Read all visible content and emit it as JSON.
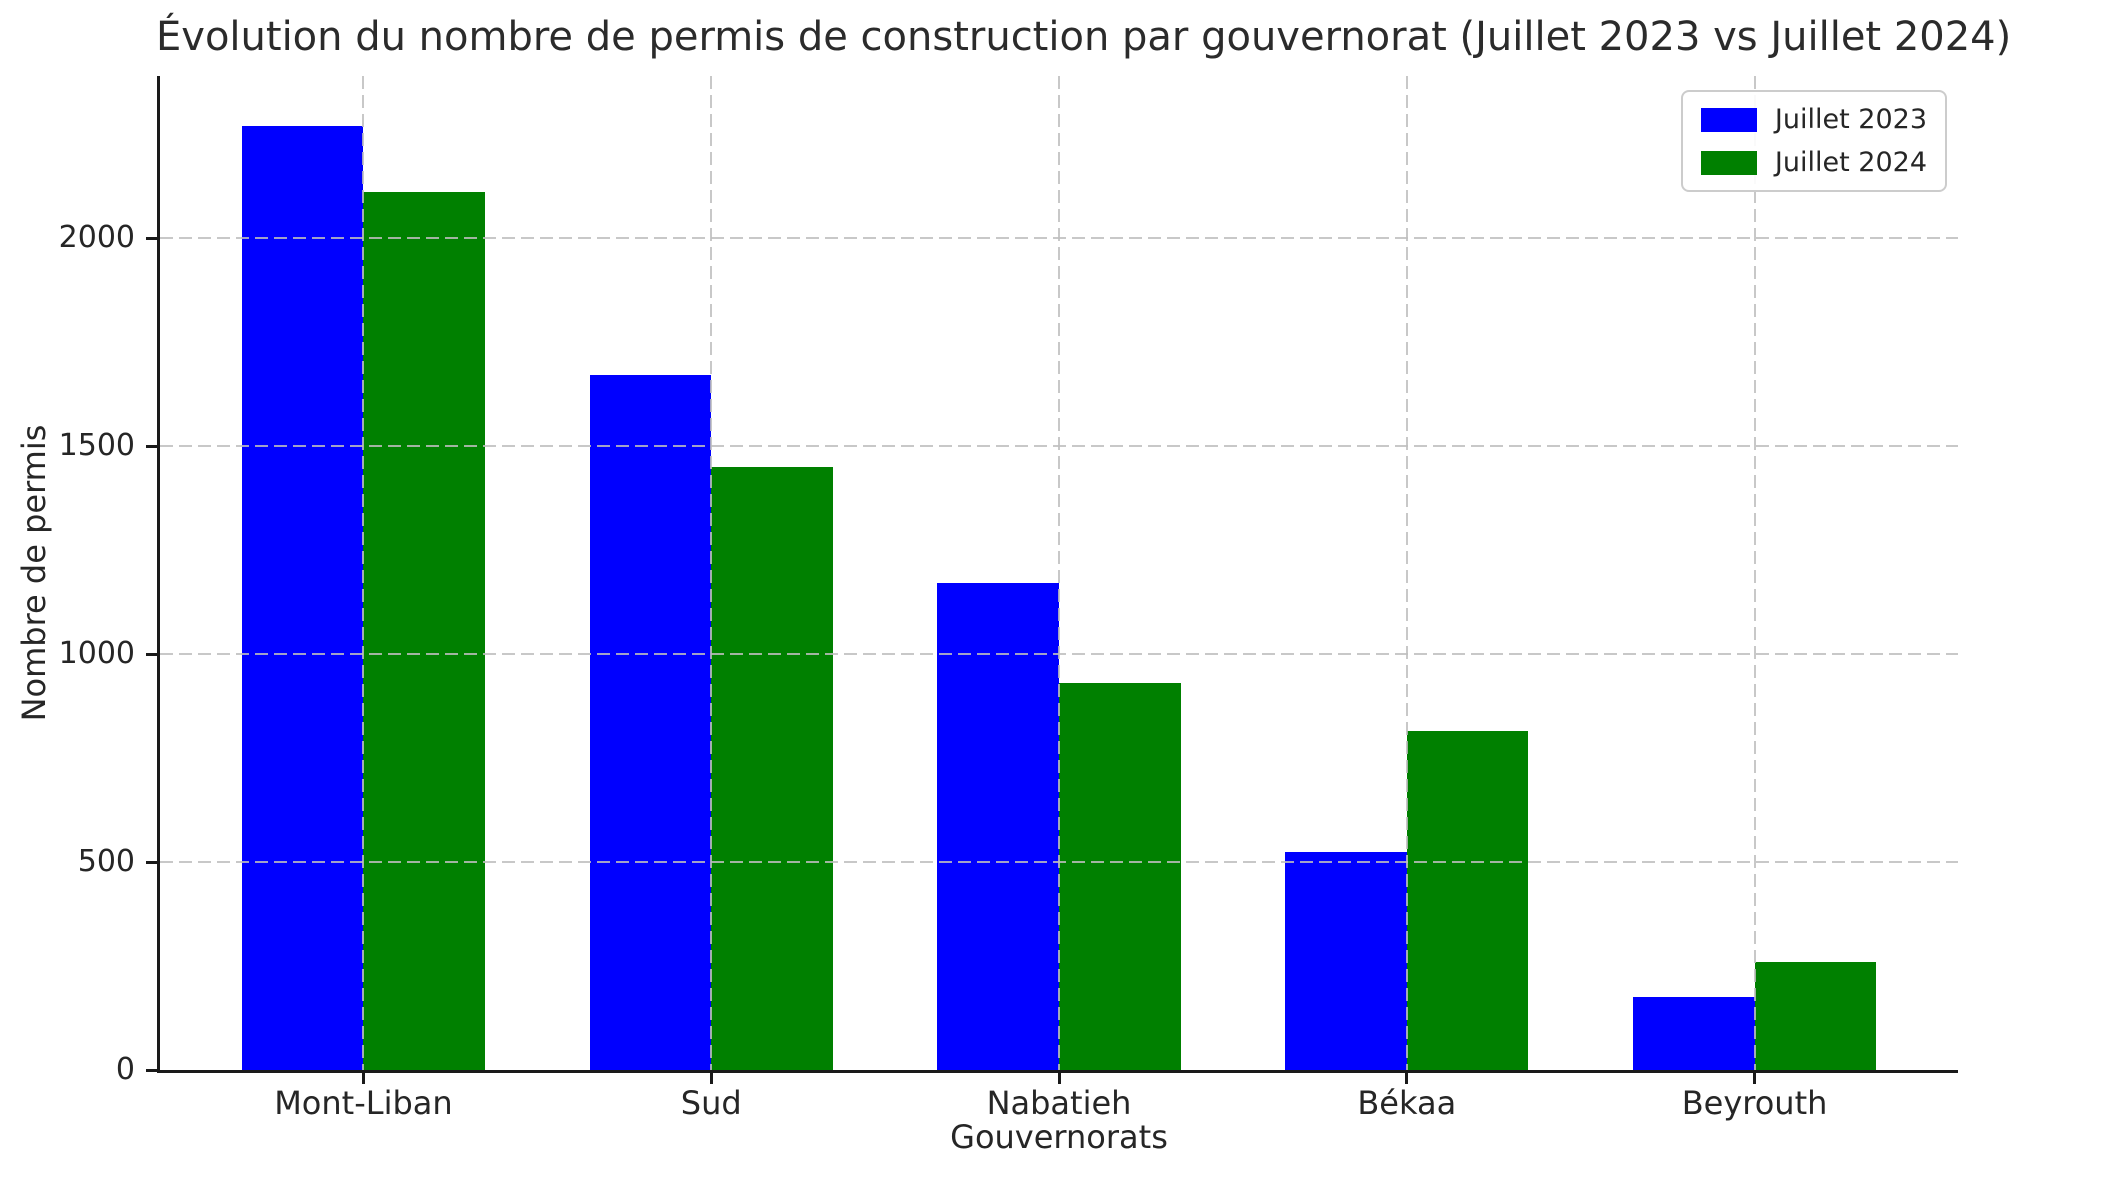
{
  "chart_data": {
    "type": "bar",
    "title": "Évolution du nombre de permis de construction par gouvernorat (Juillet 2023 vs Juillet 2024)",
    "xlabel": "Gouvernorats",
    "ylabel": "Nombre de permis",
    "categories": [
      "Mont-Liban",
      "Sud",
      "Nabatieh",
      "Békaa",
      "Beyrouth"
    ],
    "series": [
      {
        "name": "Juillet 2023",
        "color": "#0000ff",
        "values": [
          2270,
          1670,
          1170,
          525,
          175
        ]
      },
      {
        "name": "Juillet 2024",
        "color": "#008000",
        "values": [
          2110,
          1450,
          930,
          815,
          260
        ]
      }
    ],
    "ylim": [
      0,
      2390
    ],
    "yticks": [
      0,
      500,
      1000,
      1500,
      2000
    ],
    "bar_width": 0.35,
    "x_margin": 0.585,
    "x_span": 5.17,
    "grid": true,
    "grid_style": "dashed",
    "grid_above_bars": true,
    "legend_position": "upper-right",
    "colors": {
      "grid": "#bebebe",
      "axis": "#1a1a1a",
      "text": "#262626",
      "background": "#ffffff"
    }
  }
}
